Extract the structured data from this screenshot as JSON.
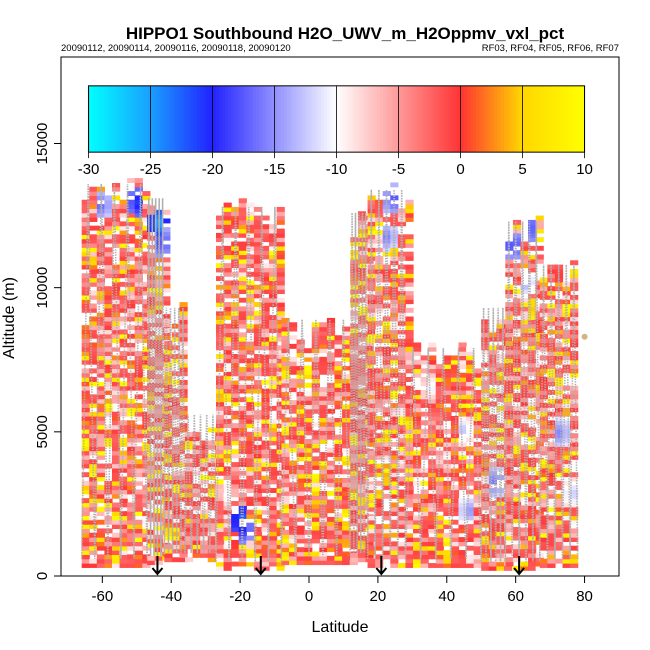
{
  "chart_data": {
    "type": "heatmap",
    "title": "HIPPO1 Southbound H2O_UWV_m_H2Oppmv_vxl_pct",
    "subtitle_left": "20090112, 20090114, 20090116, 20090118, 20090120",
    "subtitle_right": "RF03, RF04, RF05, RF06, RF07",
    "xlabel": "Latitude",
    "ylabel": "Altitude (m)",
    "xlim": [
      -72,
      90
    ],
    "ylim": [
      0,
      18000
    ],
    "x_ticks": [
      -60,
      -40,
      -20,
      0,
      20,
      40,
      60,
      80
    ],
    "y_ticks": [
      0,
      5000,
      10000,
      15000
    ],
    "colorbar": {
      "range": [
        -30,
        10
      ],
      "ticks": [
        -30,
        -25,
        -20,
        -15,
        -10,
        -5,
        0,
        5,
        10
      ],
      "colors": [
        "#00ffff",
        "#1a9fff",
        "#2222ff",
        "#ffffff",
        "#ff3333",
        "#ffd700",
        "#ffff00"
      ],
      "stops": [
        -30,
        -25,
        -20,
        -10,
        0,
        5,
        10
      ]
    },
    "flight_markers_lat": [
      -44,
      -14,
      21,
      61
    ],
    "profiles": [
      {
        "x0": -66,
        "x1": -47,
        "top": 13800,
        "bot": 300
      },
      {
        "x0": -47,
        "x1": -42,
        "top": 13300,
        "bot": 400
      },
      {
        "x0": -42,
        "x1": -36,
        "top": 9500,
        "bot": 500
      },
      {
        "x0": -36,
        "x1": -27,
        "top": 5800,
        "bot": 500
      },
      {
        "x0": -27,
        "x1": -8,
        "top": 13000,
        "bot": 200
      },
      {
        "x0": -8,
        "x1": 12,
        "top": 9100,
        "bot": 400
      },
      {
        "x0": 12,
        "x1": 17,
        "top": 12800,
        "bot": 500
      },
      {
        "x0": 17,
        "x1": 28,
        "top": 13600,
        "bot": 300
      },
      {
        "x0": 28,
        "x1": 50,
        "top": 8100,
        "bot": 300
      },
      {
        "x0": 50,
        "x1": 57,
        "top": 9500,
        "bot": 200
      },
      {
        "x0": 57,
        "x1": 67,
        "top": 12500,
        "bot": 200
      },
      {
        "x0": 67,
        "x1": 78,
        "top": 11000,
        "bot": 300
      }
    ],
    "cool_spots": [
      {
        "lat": -61,
        "alt": 12800,
        "v": -18
      },
      {
        "lat": -51,
        "alt": 12900,
        "v": -22
      },
      {
        "lat": -45,
        "alt": 12200,
        "v": -26
      },
      {
        "lat": -44,
        "alt": 11500,
        "v": -20
      },
      {
        "lat": -21,
        "alt": 1900,
        "v": -24
      },
      {
        "lat": -20,
        "alt": 1600,
        "v": -21
      },
      {
        "lat": -25,
        "alt": 2800,
        "v": -12
      },
      {
        "lat": 23,
        "alt": 13000,
        "v": -19
      },
      {
        "lat": 22,
        "alt": 11700,
        "v": -17
      },
      {
        "lat": 45,
        "alt": 2200,
        "v": -16
      },
      {
        "lat": 53,
        "alt": 3200,
        "v": -18
      },
      {
        "lat": 58,
        "alt": 11400,
        "v": -20
      },
      {
        "lat": 62,
        "alt": 12000,
        "v": -21
      },
      {
        "lat": 62,
        "alt": 10100,
        "v": -15
      },
      {
        "lat": 72,
        "alt": 4900,
        "v": -17
      },
      {
        "lat": 75,
        "alt": 2800,
        "v": -14
      },
      {
        "lat": 44,
        "alt": 5000,
        "v": -14
      },
      {
        "lat": 34,
        "alt": 6500,
        "v": -12
      }
    ]
  }
}
